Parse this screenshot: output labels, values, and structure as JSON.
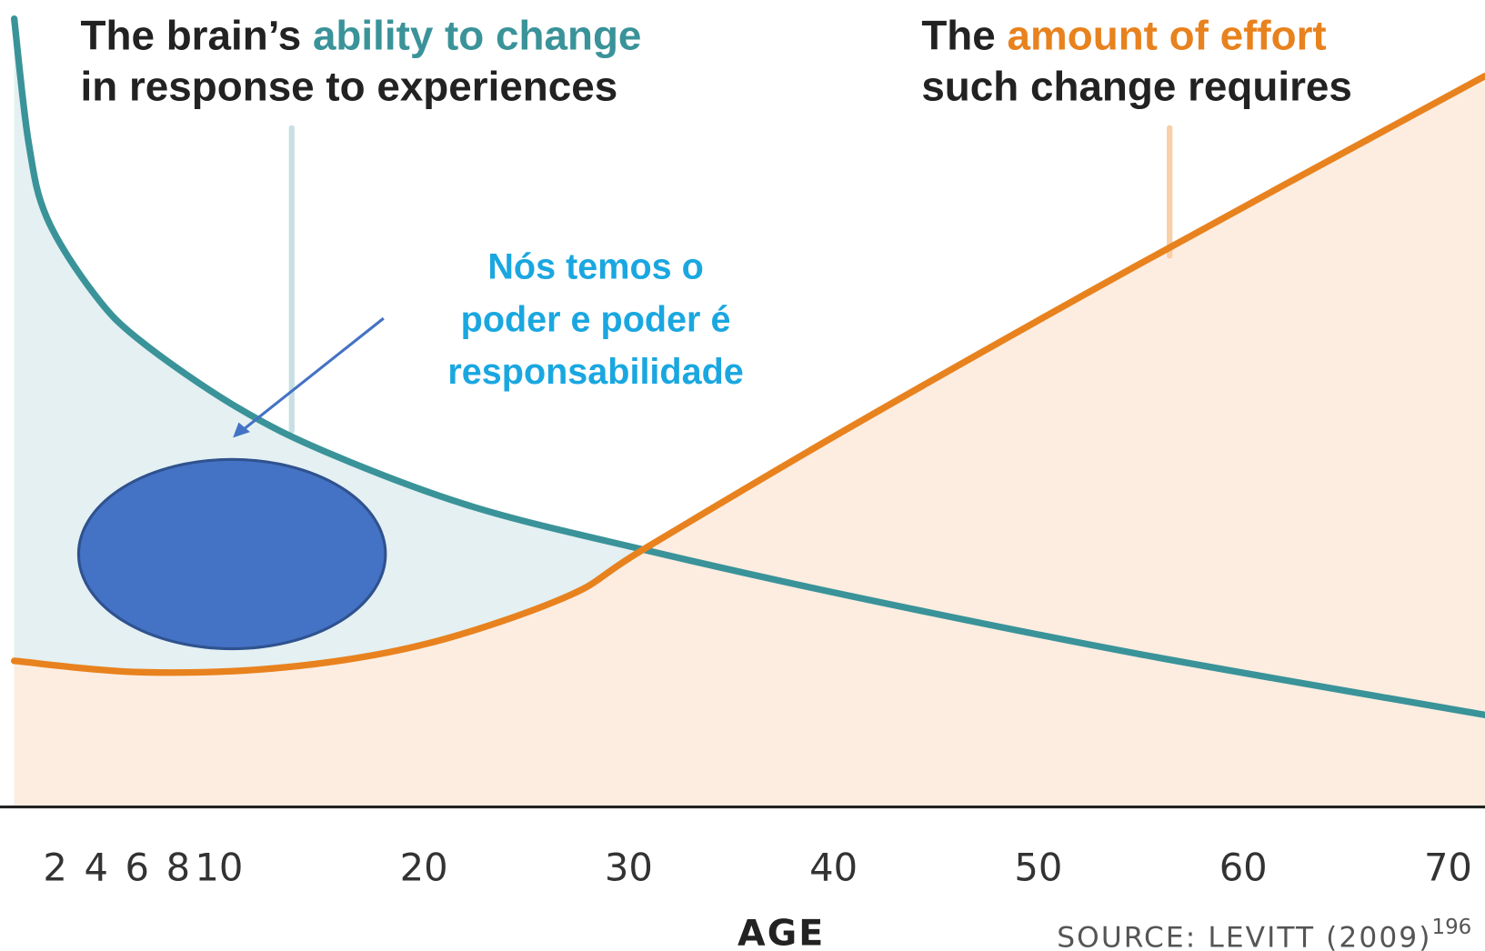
{
  "chart_data": {
    "type": "line",
    "title_left": {
      "prefix": "The brain’s ",
      "highlight": "ability to change",
      "line2": "in response to experiences"
    },
    "title_right": {
      "prefix": "The ",
      "highlight": "amount of effort",
      "line2": "such change requires"
    },
    "annotation": [
      "Nós temos o",
      "poder e poder é",
      "responsabilidade"
    ],
    "x_label": "AGE",
    "source": "SOURCE: LEVITT (2009)",
    "source_sup": "196",
    "xlim": [
      0,
      71.8
    ],
    "ylim": [
      0,
      100
    ],
    "xticks": [
      2,
      4,
      6,
      8,
      10,
      20,
      30,
      40,
      50,
      60,
      70
    ],
    "series": [
      {
        "color": "#3a9399",
        "fill": "#e4f0f2",
        "x": [
          0,
          0.7,
          1.6,
          3.9,
          6.2,
          10.9,
          15.5,
          22.4,
          30.7,
          40.9,
          54.8,
          71.8
        ],
        "values": [
          97.7,
          82.4,
          73.0,
          63.6,
          57.7,
          49.5,
          43.7,
          37.2,
          31.9,
          26.1,
          19.0,
          11.4
        ]
      },
      {
        "color": "#e8821e",
        "fill": "#fdede1",
        "x": [
          0,
          6.2,
          13.2,
          20.1,
          27.0,
          30.7,
          40.9,
          54.8,
          71.8
        ],
        "values": [
          18.1,
          16.7,
          17.3,
          20.2,
          26.1,
          31.9,
          47.2,
          67.1,
          90.6
        ]
      }
    ]
  }
}
